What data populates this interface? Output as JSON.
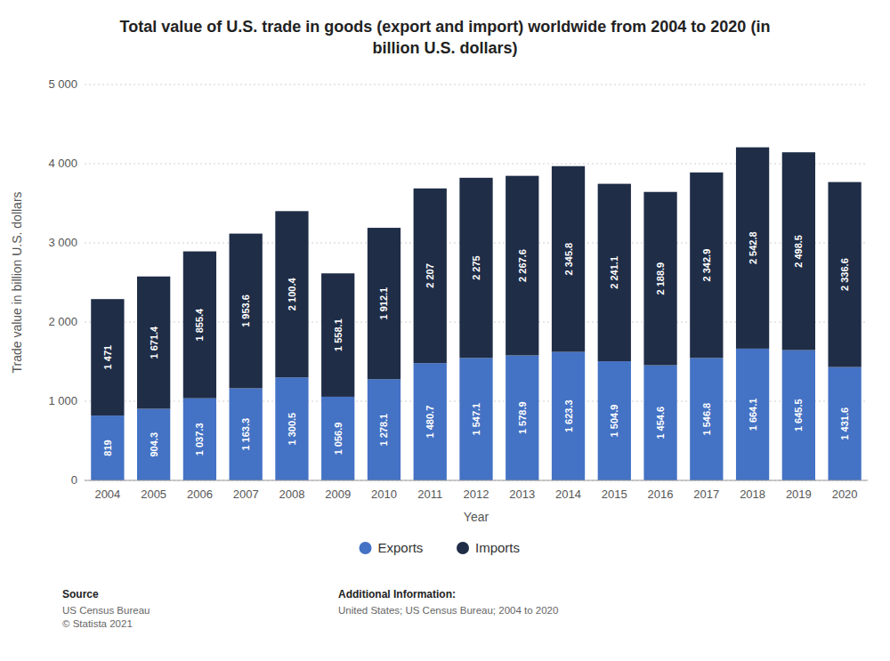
{
  "chart_data": {
    "type": "bar",
    "stacked": true,
    "title": "Total value of U.S. trade in goods (export and import) worldwide from 2004 to 2020 (in\nbillion U.S. dollars)",
    "xlabel": "Year",
    "ylabel": "Trade value in billion U.S. dollars",
    "categories": [
      "2004",
      "2005",
      "2006",
      "2007",
      "2008",
      "2009",
      "2010",
      "2011",
      "2012",
      "2013",
      "2014",
      "2015",
      "2016",
      "2017",
      "2018",
      "2019",
      "2020"
    ],
    "series": [
      {
        "name": "Exports",
        "color": "#4472c4",
        "values": [
          819,
          904.3,
          1037.3,
          1163.3,
          1300.5,
          1056.9,
          1278.1,
          1480.7,
          1547.1,
          1578.9,
          1623.3,
          1504.9,
          1454.6,
          1546.8,
          1664.1,
          1645.5,
          1431.6
        ],
        "value_labels": [
          "819",
          "904.3",
          "1 037.3",
          "1 163.3",
          "1 300.5",
          "1 056.9",
          "1 278.1",
          "1 480.7",
          "1 547.1",
          "1 578.9",
          "1 623.3",
          "1 504.9",
          "1 454.6",
          "1 546.8",
          "1 664.1",
          "1 645.5",
          "1 431.6"
        ]
      },
      {
        "name": "Imports",
        "color": "#1f2d47",
        "values": [
          1471,
          1671.4,
          1855.4,
          1953.6,
          2100.4,
          1558.1,
          1912.1,
          2207,
          2275,
          2267.6,
          2345.8,
          2241.1,
          2188.9,
          2342.9,
          2542.8,
          2498.5,
          2336.6
        ],
        "value_labels": [
          "1 471",
          "1 671.4",
          "1 855.4",
          "1 953.6",
          "2 100.4",
          "1 558.1",
          "1 912.1",
          "2 207",
          "2 275",
          "2 267.6",
          "2 345.8",
          "2 241.1",
          "2 188.9",
          "2 342.9",
          "2 542.8",
          "2 498.5",
          "2 336.6"
        ]
      }
    ],
    "ylim": [
      0,
      5000
    ],
    "yticks": [
      0,
      {
        "value": 1000,
        "label": "1 000"
      },
      {
        "value": 2000,
        "label": "2 000"
      },
      {
        "value": 3000,
        "label": "3 000"
      },
      {
        "value": 4000,
        "label": "4 000"
      },
      {
        "value": 5000,
        "label": "5 000"
      }
    ],
    "grid": true,
    "legend": "bottom",
    "data_labels": true,
    "annotations": [
      "Source",
      "US Census Bureau\n© Statista 2021",
      "Additional Information:",
      "United States; US Census Bureau; 2004 to 2020"
    ]
  }
}
